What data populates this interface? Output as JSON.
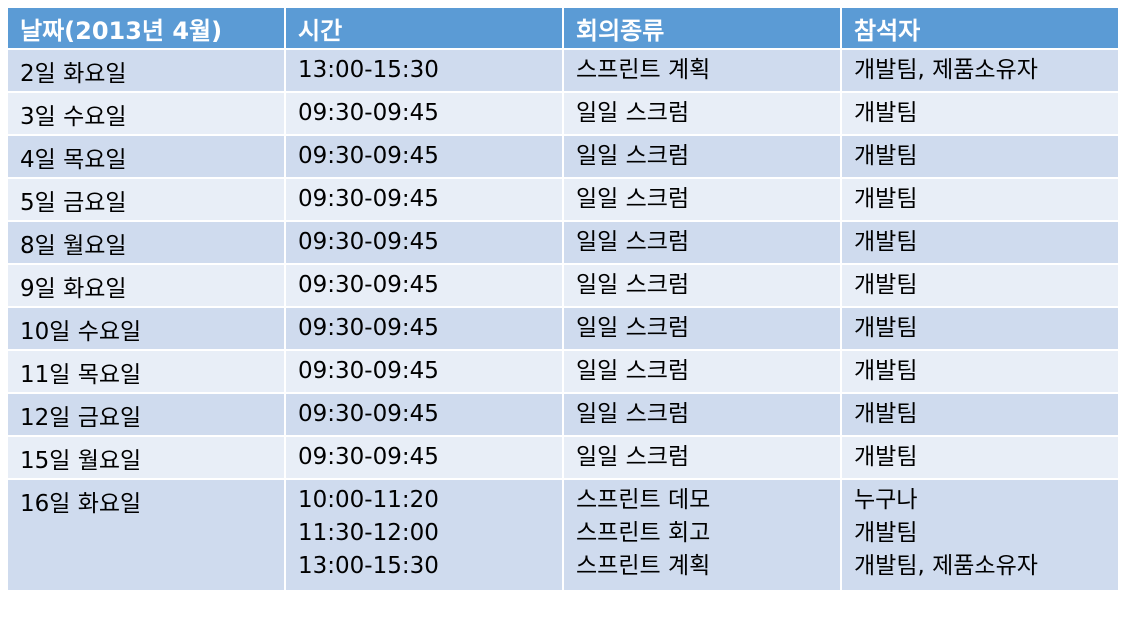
{
  "header": {
    "date": "날짜(2013년 4월)",
    "time": "시간",
    "meeting_type": "회의종류",
    "attendees": "참석자"
  },
  "rows": [
    {
      "date": "2일 화요일",
      "times": [
        "13:00-15:30"
      ],
      "types": [
        "스프린트 계획"
      ],
      "attendees": [
        "개발팀, 제품소유자"
      ]
    },
    {
      "date": "3일 수요일",
      "times": [
        "09:30-09:45"
      ],
      "types": [
        "일일 스크럼"
      ],
      "attendees": [
        "개발팀"
      ]
    },
    {
      "date": "4일 목요일",
      "times": [
        "09:30-09:45"
      ],
      "types": [
        "일일 스크럼"
      ],
      "attendees": [
        "개발팀"
      ]
    },
    {
      "date": "5일 금요일",
      "times": [
        "09:30-09:45"
      ],
      "types": [
        "일일 스크럼"
      ],
      "attendees": [
        "개발팀"
      ]
    },
    {
      "date": "8일 월요일",
      "times": [
        "09:30-09:45"
      ],
      "types": [
        "일일 스크럼"
      ],
      "attendees": [
        "개발팀"
      ]
    },
    {
      "date": "9일 화요일",
      "times": [
        "09:30-09:45"
      ],
      "types": [
        "일일 스크럼"
      ],
      "attendees": [
        "개발팀"
      ]
    },
    {
      "date": "10일 수요일",
      "times": [
        "09:30-09:45"
      ],
      "types": [
        "일일 스크럼"
      ],
      "attendees": [
        "개발팀"
      ]
    },
    {
      "date": "11일 목요일",
      "times": [
        "09:30-09:45"
      ],
      "types": [
        "일일 스크럼"
      ],
      "attendees": [
        "개발팀"
      ]
    },
    {
      "date": "12일 금요일",
      "times": [
        "09:30-09:45"
      ],
      "types": [
        "일일 스크럼"
      ],
      "attendees": [
        "개발팀"
      ]
    },
    {
      "date": "15일 월요일",
      "times": [
        "09:30-09:45"
      ],
      "types": [
        "일일 스크럼"
      ],
      "attendees": [
        "개발팀"
      ]
    },
    {
      "date": "16일 화요일",
      "times": [
        "10:00-11:20",
        "11:30-12:00",
        "13:00-15:30"
      ],
      "types": [
        "스프린트 데모",
        "스프린트 회고",
        "스프린트 계획"
      ],
      "attendees": [
        "누구나",
        "개발팀",
        "개발팀, 제품소유자"
      ]
    }
  ],
  "colors": {
    "header_bg": "#5b9bd5",
    "row_odd_bg": "#cfdbee",
    "row_even_bg": "#e8eef7"
  }
}
